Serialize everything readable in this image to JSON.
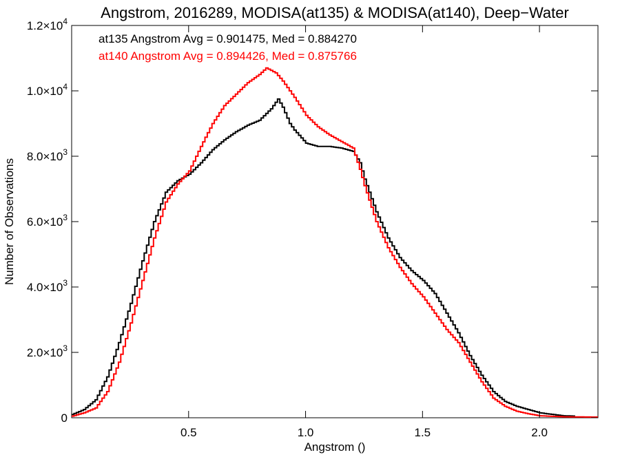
{
  "chart_data": {
    "type": "line",
    "title": "Angstrom, 2016289, MODISA(at135) & MODISA(at140), Deep−Water",
    "xlabel": "Angstrom ()",
    "ylabel": "Number of Observations",
    "xlim": [
      0.0,
      2.25
    ],
    "ylim": [
      0,
      12000
    ],
    "x_ticks": [
      {
        "value": 0.5,
        "label": "0.5"
      },
      {
        "value": 1.0,
        "label": "1.0"
      },
      {
        "value": 1.5,
        "label": "1.5"
      },
      {
        "value": 2.0,
        "label": "2.0"
      }
    ],
    "y_ticks": [
      {
        "value": 0,
        "mant": "0",
        "exp": ""
      },
      {
        "value": 2000,
        "mant": "2.0×10",
        "exp": "3"
      },
      {
        "value": 4000,
        "mant": "4.0×10",
        "exp": "3"
      },
      {
        "value": 6000,
        "mant": "6.0×10",
        "exp": "3"
      },
      {
        "value": 8000,
        "mant": "8.0×10",
        "exp": "3"
      },
      {
        "value": 10000,
        "mant": "1.0×10",
        "exp": "4"
      },
      {
        "value": 12000,
        "mant": "1.2×10",
        "exp": "4"
      }
    ],
    "grid": false,
    "legend": {
      "position": "top-left"
    },
    "series": [
      {
        "name": "at135 Angstrom Avg = 0.901475, Med = 0.884270",
        "color": "#000000",
        "points": [
          [
            0.0,
            100
          ],
          [
            0.05,
            250
          ],
          [
            0.1,
            550
          ],
          [
            0.15,
            1250
          ],
          [
            0.2,
            2300
          ],
          [
            0.25,
            3500
          ],
          [
            0.3,
            4800
          ],
          [
            0.35,
            6000
          ],
          [
            0.4,
            6900
          ],
          [
            0.45,
            7250
          ],
          [
            0.5,
            7450
          ],
          [
            0.55,
            7800
          ],
          [
            0.6,
            8200
          ],
          [
            0.65,
            8500
          ],
          [
            0.7,
            8750
          ],
          [
            0.75,
            8950
          ],
          [
            0.8,
            9100
          ],
          [
            0.85,
            9450
          ],
          [
            0.88,
            9750
          ],
          [
            0.9,
            9500
          ],
          [
            0.93,
            9000
          ],
          [
            0.95,
            8800
          ],
          [
            1.0,
            8400
          ],
          [
            1.05,
            8300
          ],
          [
            1.1,
            8300
          ],
          [
            1.15,
            8250
          ],
          [
            1.2,
            8150
          ],
          [
            1.23,
            7800
          ],
          [
            1.25,
            7300
          ],
          [
            1.3,
            6300
          ],
          [
            1.35,
            5500
          ],
          [
            1.4,
            4900
          ],
          [
            1.45,
            4500
          ],
          [
            1.5,
            4200
          ],
          [
            1.55,
            3800
          ],
          [
            1.6,
            3200
          ],
          [
            1.65,
            2600
          ],
          [
            1.7,
            1900
          ],
          [
            1.75,
            1300
          ],
          [
            1.8,
            800
          ],
          [
            1.85,
            500
          ],
          [
            1.9,
            350
          ],
          [
            1.95,
            250
          ],
          [
            2.0,
            150
          ],
          [
            2.1,
            60
          ],
          [
            2.15,
            50
          ]
        ]
      },
      {
        "name": "at140 Angstrom Avg = 0.894426, Med = 0.875766",
        "color": "#ff0000",
        "points": [
          [
            0.0,
            50
          ],
          [
            0.05,
            150
          ],
          [
            0.1,
            300
          ],
          [
            0.15,
            800
          ],
          [
            0.2,
            1700
          ],
          [
            0.25,
            2900
          ],
          [
            0.3,
            4200
          ],
          [
            0.35,
            5500
          ],
          [
            0.4,
            6600
          ],
          [
            0.45,
            7150
          ],
          [
            0.5,
            7550
          ],
          [
            0.55,
            8300
          ],
          [
            0.6,
            9000
          ],
          [
            0.65,
            9550
          ],
          [
            0.7,
            9900
          ],
          [
            0.75,
            10250
          ],
          [
            0.8,
            10500
          ],
          [
            0.83,
            10700
          ],
          [
            0.87,
            10550
          ],
          [
            0.9,
            10300
          ],
          [
            0.95,
            9800
          ],
          [
            1.0,
            9250
          ],
          [
            1.05,
            8900
          ],
          [
            1.1,
            8650
          ],
          [
            1.15,
            8450
          ],
          [
            1.2,
            8250
          ],
          [
            1.23,
            7600
          ],
          [
            1.25,
            7100
          ],
          [
            1.3,
            6000
          ],
          [
            1.35,
            5200
          ],
          [
            1.4,
            4600
          ],
          [
            1.45,
            4100
          ],
          [
            1.5,
            3700
          ],
          [
            1.55,
            3200
          ],
          [
            1.6,
            2700
          ],
          [
            1.65,
            2300
          ],
          [
            1.7,
            1700
          ],
          [
            1.75,
            1100
          ],
          [
            1.8,
            600
          ],
          [
            1.85,
            350
          ],
          [
            1.9,
            200
          ],
          [
            1.95,
            120
          ],
          [
            2.0,
            60
          ],
          [
            2.1,
            30
          ],
          [
            2.25,
            20
          ]
        ]
      }
    ]
  }
}
